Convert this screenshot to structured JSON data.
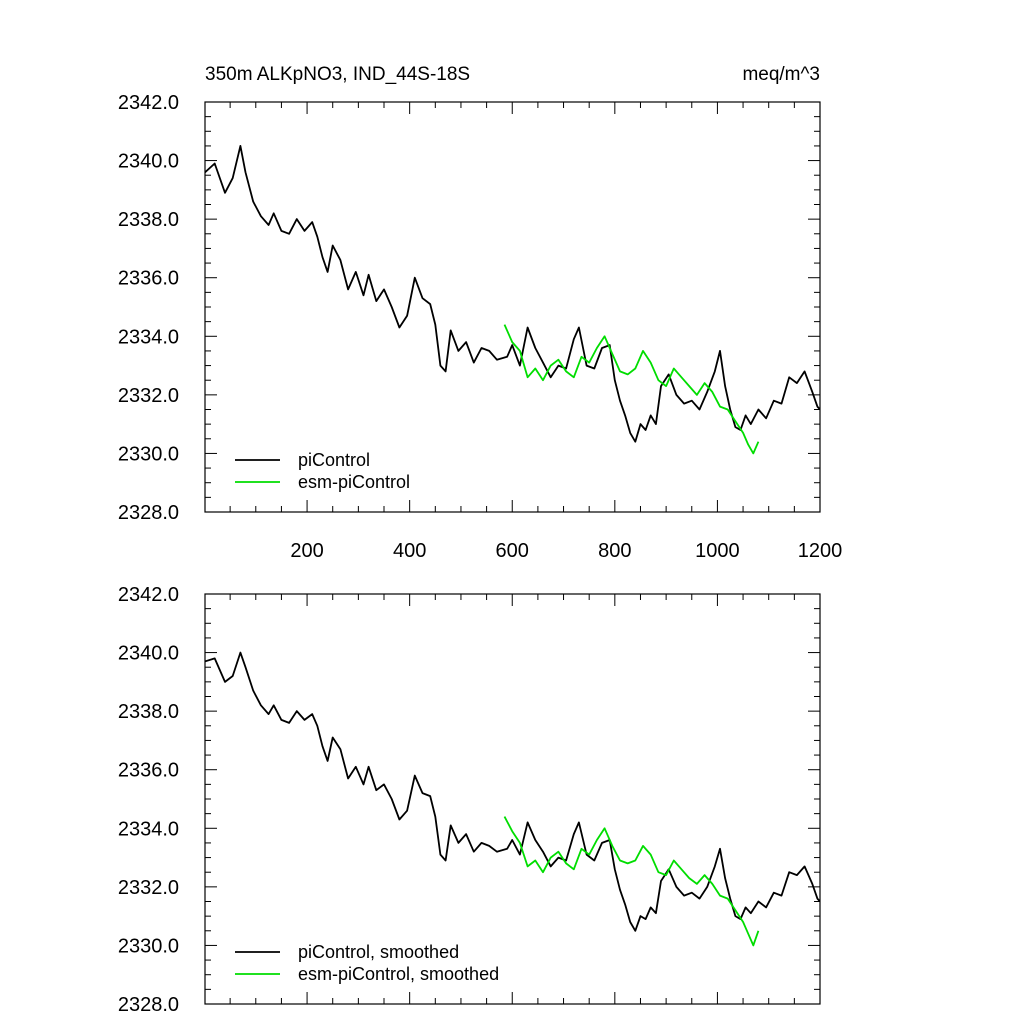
{
  "colors": {
    "piControl": "#000000",
    "esm_piControl": "#00dd00",
    "axis": "#000000",
    "background": "#ffffff"
  },
  "chart_data": [
    {
      "type": "line",
      "title": "350m ALKpNO3, IND_44S-18S",
      "units": "meq/m^3",
      "xlim": [
        1,
        1200
      ],
      "ylim": [
        2328,
        2342
      ],
      "xticks": [
        200,
        400,
        600,
        800,
        1000,
        1200
      ],
      "xtick_labels": [
        "200",
        "400",
        "600",
        "800",
        "1000",
        "1200"
      ],
      "yticks": [
        2328,
        2330,
        2332,
        2334,
        2336,
        2338,
        2340,
        2342
      ],
      "ytick_labels": [
        "2328.0",
        "2330.0",
        "2332.0",
        "2334.0",
        "2336.0",
        "2338.0",
        "2340.0",
        "2342.0"
      ],
      "legend_position": "bottom-left",
      "series": [
        {
          "name": "piControl",
          "color": "#000000",
          "points": [
            [
              1,
              2339.6
            ],
            [
              20,
              2339.9
            ],
            [
              40,
              2338.9
            ],
            [
              55,
              2339.4
            ],
            [
              70,
              2340.5
            ],
            [
              80,
              2339.6
            ],
            [
              95,
              2338.6
            ],
            [
              110,
              2338.1
            ],
            [
              125,
              2337.8
            ],
            [
              135,
              2338.2
            ],
            [
              150,
              2337.6
            ],
            [
              165,
              2337.5
            ],
            [
              180,
              2338.0
            ],
            [
              195,
              2337.6
            ],
            [
              210,
              2337.9
            ],
            [
              220,
              2337.4
            ],
            [
              230,
              2336.7
            ],
            [
              240,
              2336.2
            ],
            [
              250,
              2337.1
            ],
            [
              265,
              2336.6
            ],
            [
              280,
              2335.6
            ],
            [
              295,
              2336.2
            ],
            [
              310,
              2335.4
            ],
            [
              320,
              2336.1
            ],
            [
              335,
              2335.2
            ],
            [
              350,
              2335.6
            ],
            [
              365,
              2335.0
            ],
            [
              380,
              2334.3
            ],
            [
              395,
              2334.7
            ],
            [
              410,
              2336.0
            ],
            [
              425,
              2335.3
            ],
            [
              440,
              2335.1
            ],
            [
              450,
              2334.4
            ],
            [
              460,
              2333.0
            ],
            [
              470,
              2332.8
            ],
            [
              480,
              2334.2
            ],
            [
              495,
              2333.5
            ],
            [
              510,
              2333.8
            ],
            [
              525,
              2333.1
            ],
            [
              540,
              2333.6
            ],
            [
              555,
              2333.5
            ],
            [
              570,
              2333.2
            ],
            [
              590,
              2333.3
            ],
            [
              600,
              2333.7
            ],
            [
              615,
              2333.0
            ],
            [
              630,
              2334.3
            ],
            [
              645,
              2333.6
            ],
            [
              660,
              2333.1
            ],
            [
              675,
              2332.6
            ],
            [
              690,
              2333.0
            ],
            [
              705,
              2332.9
            ],
            [
              720,
              2333.9
            ],
            [
              730,
              2334.3
            ],
            [
              745,
              2333.0
            ],
            [
              760,
              2332.9
            ],
            [
              775,
              2333.6
            ],
            [
              790,
              2333.7
            ],
            [
              800,
              2332.5
            ],
            [
              810,
              2331.8
            ],
            [
              820,
              2331.3
            ],
            [
              830,
              2330.7
            ],
            [
              840,
              2330.4
            ],
            [
              850,
              2331.0
            ],
            [
              860,
              2330.8
            ],
            [
              870,
              2331.3
            ],
            [
              880,
              2331.0
            ],
            [
              890,
              2332.3
            ],
            [
              905,
              2332.7
            ],
            [
              920,
              2332.0
            ],
            [
              935,
              2331.7
            ],
            [
              950,
              2331.8
            ],
            [
              965,
              2331.5
            ],
            [
              980,
              2332.1
            ],
            [
              995,
              2332.8
            ],
            [
              1005,
              2333.5
            ],
            [
              1015,
              2332.3
            ],
            [
              1025,
              2331.5
            ],
            [
              1035,
              2330.9
            ],
            [
              1045,
              2330.8
            ],
            [
              1055,
              2331.3
            ],
            [
              1065,
              2331.0
            ],
            [
              1080,
              2331.5
            ],
            [
              1095,
              2331.2
            ],
            [
              1110,
              2331.8
            ],
            [
              1125,
              2331.7
            ],
            [
              1140,
              2332.6
            ],
            [
              1155,
              2332.4
            ],
            [
              1170,
              2332.8
            ],
            [
              1185,
              2332.1
            ],
            [
              1195,
              2331.6
            ],
            [
              1200,
              2331.5
            ]
          ]
        },
        {
          "name": "esm-piControl",
          "color": "#00dd00",
          "points": [
            [
              585,
              2334.4
            ],
            [
              600,
              2333.8
            ],
            [
              615,
              2333.5
            ],
            [
              630,
              2332.6
            ],
            [
              645,
              2332.9
            ],
            [
              660,
              2332.5
            ],
            [
              675,
              2333.0
            ],
            [
              690,
              2333.2
            ],
            [
              705,
              2332.8
            ],
            [
              720,
              2332.6
            ],
            [
              735,
              2333.3
            ],
            [
              750,
              2333.1
            ],
            [
              765,
              2333.6
            ],
            [
              780,
              2334.0
            ],
            [
              795,
              2333.4
            ],
            [
              810,
              2332.8
            ],
            [
              825,
              2332.7
            ],
            [
              840,
              2332.9
            ],
            [
              855,
              2333.5
            ],
            [
              870,
              2333.1
            ],
            [
              885,
              2332.5
            ],
            [
              900,
              2332.3
            ],
            [
              915,
              2332.9
            ],
            [
              930,
              2332.6
            ],
            [
              945,
              2332.3
            ],
            [
              960,
              2332.0
            ],
            [
              975,
              2332.4
            ],
            [
              990,
              2332.1
            ],
            [
              1005,
              2331.6
            ],
            [
              1020,
              2331.5
            ],
            [
              1035,
              2331.1
            ],
            [
              1050,
              2330.7
            ],
            [
              1060,
              2330.3
            ],
            [
              1070,
              2330.0
            ],
            [
              1080,
              2330.4
            ]
          ]
        }
      ]
    },
    {
      "type": "line",
      "xlim": [
        1,
        1200
      ],
      "ylim": [
        2328,
        2342
      ],
      "xticks": [
        200,
        400,
        600,
        800,
        1000,
        1200
      ],
      "yticks": [
        2328,
        2330,
        2332,
        2334,
        2336,
        2338,
        2340,
        2342
      ],
      "ytick_labels": [
        "2328.0",
        "2330.0",
        "2332.0",
        "2334.0",
        "2336.0",
        "2338.0",
        "2340.0",
        "2342.0"
      ],
      "legend_position": "bottom-left",
      "series": [
        {
          "name": "piControl, smoothed",
          "color": "#000000",
          "points": [
            [
              1,
              2339.7
            ],
            [
              20,
              2339.8
            ],
            [
              40,
              2339.0
            ],
            [
              55,
              2339.2
            ],
            [
              70,
              2340.0
            ],
            [
              80,
              2339.5
            ],
            [
              95,
              2338.7
            ],
            [
              110,
              2338.2
            ],
            [
              125,
              2337.9
            ],
            [
              135,
              2338.2
            ],
            [
              150,
              2337.7
            ],
            [
              165,
              2337.6
            ],
            [
              180,
              2338.0
            ],
            [
              195,
              2337.7
            ],
            [
              210,
              2337.9
            ],
            [
              220,
              2337.5
            ],
            [
              230,
              2336.8
            ],
            [
              240,
              2336.3
            ],
            [
              250,
              2337.1
            ],
            [
              265,
              2336.7
            ],
            [
              280,
              2335.7
            ],
            [
              295,
              2336.1
            ],
            [
              310,
              2335.5
            ],
            [
              320,
              2336.1
            ],
            [
              335,
              2335.3
            ],
            [
              350,
              2335.5
            ],
            [
              365,
              2335.0
            ],
            [
              380,
              2334.3
            ],
            [
              395,
              2334.6
            ],
            [
              410,
              2335.8
            ],
            [
              425,
              2335.2
            ],
            [
              440,
              2335.1
            ],
            [
              450,
              2334.4
            ],
            [
              460,
              2333.1
            ],
            [
              470,
              2332.9
            ],
            [
              480,
              2334.1
            ],
            [
              495,
              2333.5
            ],
            [
              510,
              2333.8
            ],
            [
              525,
              2333.2
            ],
            [
              540,
              2333.5
            ],
            [
              555,
              2333.4
            ],
            [
              570,
              2333.2
            ],
            [
              590,
              2333.3
            ],
            [
              600,
              2333.6
            ],
            [
              615,
              2333.1
            ],
            [
              630,
              2334.2
            ],
            [
              645,
              2333.6
            ],
            [
              660,
              2333.2
            ],
            [
              675,
              2332.7
            ],
            [
              690,
              2333.0
            ],
            [
              705,
              2332.9
            ],
            [
              720,
              2333.8
            ],
            [
              730,
              2334.2
            ],
            [
              745,
              2333.1
            ],
            [
              760,
              2332.9
            ],
            [
              775,
              2333.5
            ],
            [
              790,
              2333.6
            ],
            [
              800,
              2332.6
            ],
            [
              810,
              2331.9
            ],
            [
              820,
              2331.4
            ],
            [
              830,
              2330.8
            ],
            [
              840,
              2330.5
            ],
            [
              850,
              2331.0
            ],
            [
              860,
              2330.9
            ],
            [
              870,
              2331.3
            ],
            [
              880,
              2331.1
            ],
            [
              890,
              2332.2
            ],
            [
              905,
              2332.6
            ],
            [
              920,
              2332.0
            ],
            [
              935,
              2331.7
            ],
            [
              950,
              2331.8
            ],
            [
              965,
              2331.6
            ],
            [
              980,
              2332.0
            ],
            [
              995,
              2332.7
            ],
            [
              1005,
              2333.3
            ],
            [
              1015,
              2332.3
            ],
            [
              1025,
              2331.6
            ],
            [
              1035,
              2331.0
            ],
            [
              1045,
              2330.9
            ],
            [
              1055,
              2331.3
            ],
            [
              1065,
              2331.1
            ],
            [
              1080,
              2331.5
            ],
            [
              1095,
              2331.3
            ],
            [
              1110,
              2331.8
            ],
            [
              1125,
              2331.7
            ],
            [
              1140,
              2332.5
            ],
            [
              1155,
              2332.4
            ],
            [
              1170,
              2332.7
            ],
            [
              1185,
              2332.1
            ],
            [
              1195,
              2331.6
            ],
            [
              1200,
              2331.5
            ]
          ]
        },
        {
          "name": "esm-piControl, smoothed",
          "color": "#00dd00",
          "points": [
            [
              585,
              2334.4
            ],
            [
              600,
              2333.9
            ],
            [
              615,
              2333.5
            ],
            [
              630,
              2332.7
            ],
            [
              645,
              2332.9
            ],
            [
              660,
              2332.5
            ],
            [
              675,
              2333.0
            ],
            [
              690,
              2333.2
            ],
            [
              705,
              2332.8
            ],
            [
              720,
              2332.6
            ],
            [
              735,
              2333.3
            ],
            [
              750,
              2333.1
            ],
            [
              765,
              2333.6
            ],
            [
              780,
              2334.0
            ],
            [
              795,
              2333.4
            ],
            [
              810,
              2332.9
            ],
            [
              825,
              2332.8
            ],
            [
              840,
              2332.9
            ],
            [
              855,
              2333.4
            ],
            [
              870,
              2333.1
            ],
            [
              885,
              2332.5
            ],
            [
              900,
              2332.4
            ],
            [
              915,
              2332.9
            ],
            [
              930,
              2332.6
            ],
            [
              945,
              2332.3
            ],
            [
              960,
              2332.1
            ],
            [
              975,
              2332.4
            ],
            [
              990,
              2332.1
            ],
            [
              1005,
              2331.7
            ],
            [
              1020,
              2331.6
            ],
            [
              1035,
              2331.2
            ],
            [
              1050,
              2330.8
            ],
            [
              1060,
              2330.4
            ],
            [
              1070,
              2330.0
            ],
            [
              1080,
              2330.5
            ]
          ]
        }
      ]
    }
  ]
}
